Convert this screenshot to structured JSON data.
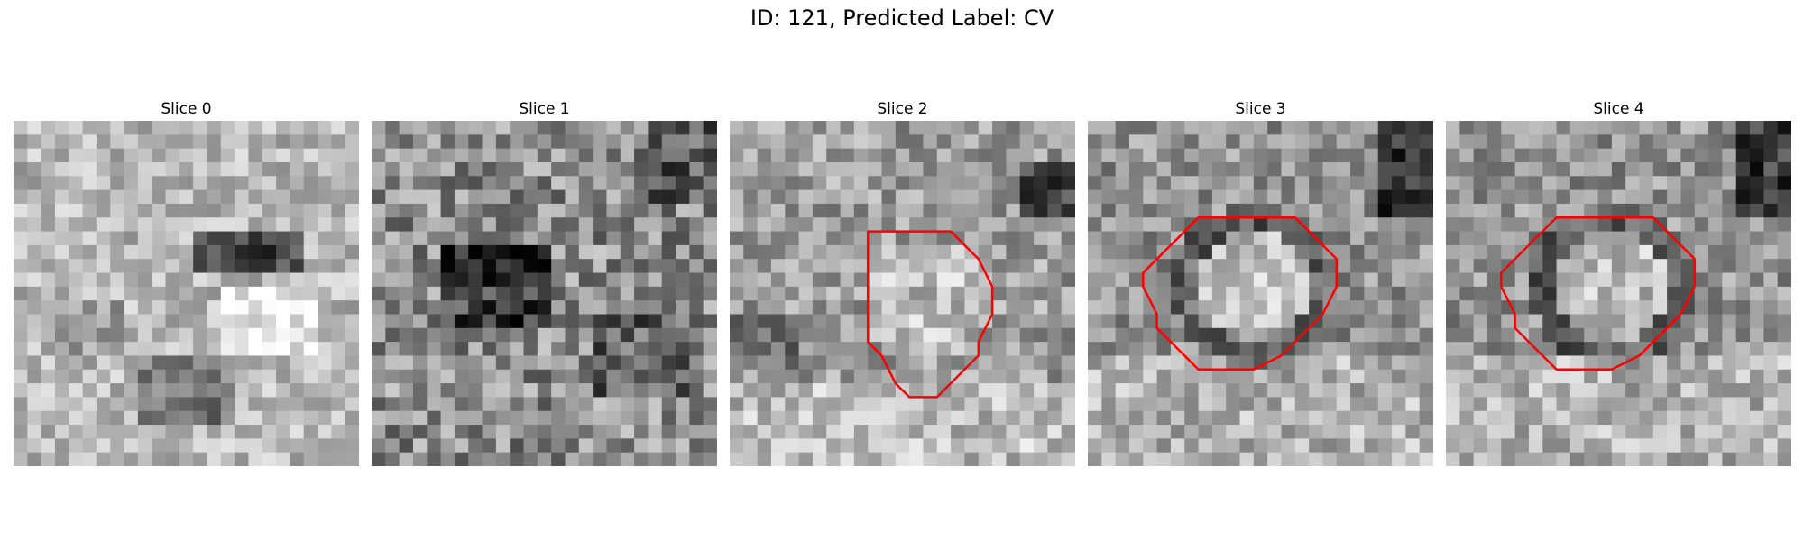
{
  "figure": {
    "title": "ID: 121, Predicted Label: CV"
  },
  "slices": [
    {
      "label": "Slice 0",
      "has_contour": false,
      "contour_color": "#ff0000"
    },
    {
      "label": "Slice 1",
      "has_contour": false,
      "contour_color": "#ff0000"
    },
    {
      "label": "Slice 2",
      "has_contour": true,
      "contour_color": "#ff0000"
    },
    {
      "label": "Slice 3",
      "has_contour": true,
      "contour_color": "#ff0000"
    },
    {
      "label": "Slice 4",
      "has_contour": true,
      "contour_color": "#ff0000"
    }
  ],
  "colormap": "gray"
}
